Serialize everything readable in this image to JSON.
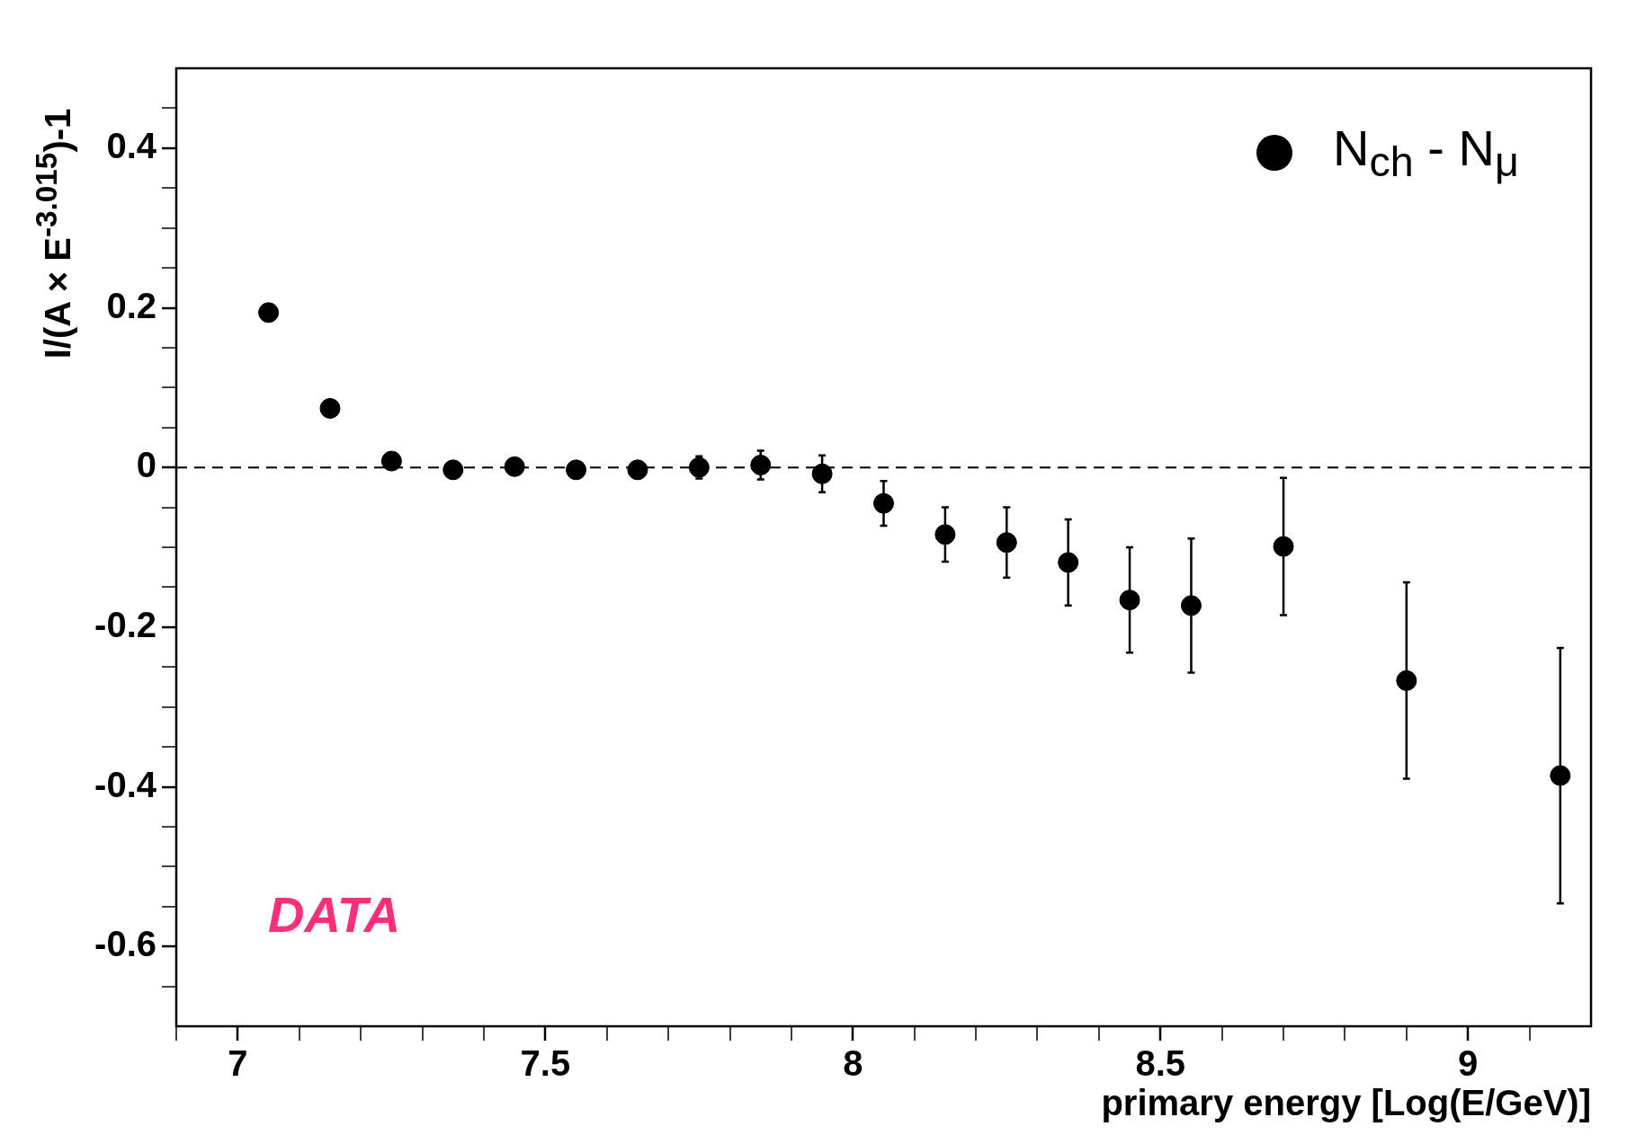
{
  "chart_data": {
    "type": "scatter",
    "xlabel": "primary energy [Log(E/GeV)]",
    "ylabel": "I/(A × E$^{-3.015}$)-1",
    "annotations": [
      "DATA"
    ],
    "x": [
      7.05,
      7.15,
      7.25,
      7.35,
      7.45,
      7.55,
      7.65,
      7.75,
      7.85,
      7.95,
      8.05,
      8.15,
      8.25,
      8.35,
      8.45,
      8.55,
      8.7,
      8.9,
      9.15
    ],
    "series": [
      {
        "name": "N$_{ch}$ - N$_{μ}$",
        "color": "#000000",
        "values": [
          0.194,
          0.074,
          0.008,
          -0.003,
          0.001,
          -0.003,
          -0.003,
          0.0,
          0.003,
          -0.008,
          -0.045,
          -0.084,
          -0.094,
          -0.119,
          -0.166,
          -0.173,
          -0.099,
          -0.267,
          -0.386
        ],
        "errors": [
          null,
          null,
          null,
          null,
          null,
          null,
          null,
          0.014,
          0.018,
          0.023,
          0.028,
          0.034,
          0.044,
          0.054,
          0.066,
          0.084,
          0.086,
          0.123,
          0.16
        ]
      }
    ],
    "xlim": [
      6.9,
      9.2
    ],
    "ylim": [
      -0.7,
      0.5
    ],
    "xticks": [
      {
        "value": 6.9,
        "label": null
      },
      7,
      {
        "value": 7.1,
        "label": null
      },
      {
        "value": 7.2,
        "label": null
      },
      {
        "value": 7.3,
        "label": null
      },
      {
        "value": 7.4,
        "label": null
      },
      7.5,
      {
        "value": 7.6,
        "label": null
      },
      {
        "value": 7.7,
        "label": null
      },
      {
        "value": 7.8,
        "label": null
      },
      {
        "value": 7.9,
        "label": null
      },
      8,
      {
        "value": 8.1,
        "label": null
      },
      {
        "value": 8.2,
        "label": null
      },
      {
        "value": 8.3,
        "label": null
      },
      {
        "value": 8.4,
        "label": null
      },
      8.5,
      {
        "value": 8.6,
        "label": null
      },
      {
        "value": 8.7,
        "label": null
      },
      {
        "value": 8.8,
        "label": null
      },
      {
        "value": 8.9,
        "label": null
      },
      9,
      {
        "value": 9.1,
        "label": null
      }
    ],
    "yticks": [
      {
        "value": -0.65,
        "label": null
      },
      -0.6,
      {
        "value": -0.55,
        "label": null
      },
      {
        "value": -0.5,
        "label": null
      },
      {
        "value": -0.45,
        "label": null
      },
      -0.4,
      {
        "value": -0.35,
        "label": null
      },
      {
        "value": -0.3,
        "label": null
      },
      {
        "value": -0.25,
        "label": null
      },
      -0.2,
      {
        "value": -0.15,
        "label": null
      },
      {
        "value": -0.1,
        "label": null
      },
      {
        "value": -0.05,
        "label": null
      },
      0,
      {
        "value": 0.05,
        "label": null
      },
      {
        "value": 0.1,
        "label": null
      },
      {
        "value": 0.15,
        "label": null
      },
      0.2,
      {
        "value": 0.25,
        "label": null
      },
      {
        "value": 0.3,
        "label": null
      },
      {
        "value": 0.35,
        "label": null
      },
      0.4,
      {
        "value": 0.45,
        "label": null
      }
    ],
    "ref_lines": [
      {
        "axis": "y",
        "value": 0,
        "line_style": "dashed",
        "color": "#000000"
      }
    ],
    "legend": "top right",
    "marker": "circle"
  }
}
